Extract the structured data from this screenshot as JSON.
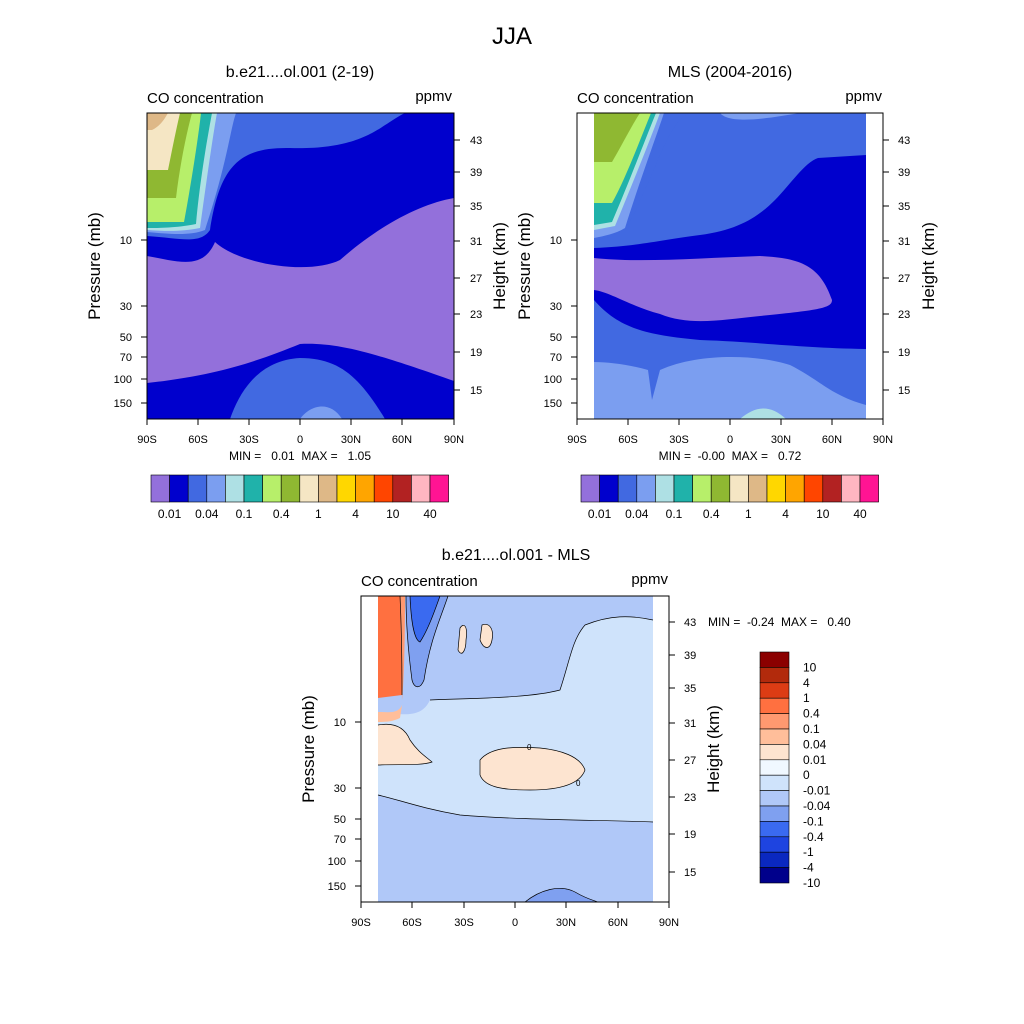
{
  "figure_title": "JJA",
  "chart_data": [
    {
      "type": "heatmap",
      "title": "b.e21....ol.001 (2-19)",
      "left_label": "CO concentration",
      "right_label": "ppmv",
      "ylabel": "Pressure (mb)",
      "y2label": "Height (km)",
      "x_ticks": [
        "90S",
        "60S",
        "30S",
        "0",
        "30N",
        "60N",
        "90N"
      ],
      "y_ticks": [
        "10",
        "30",
        "50",
        "70",
        "100",
        "150"
      ],
      "y2_ticks": [
        "43",
        "39",
        "35",
        "31",
        "27",
        "23",
        "19",
        "15"
      ],
      "stats": "MIN =   0.01  MAX =   1.05",
      "colorbar_labels": [
        "0.01",
        "0.04",
        "0.1",
        "0.4",
        "1",
        "4",
        "10",
        "40"
      ],
      "colorbar_colors": [
        "#9370db",
        "#0000cd",
        "#4169e1",
        "#7b9ef0",
        "#aee0e4",
        "#20b2aa",
        "#b7ef6a",
        "#8fb832",
        "#f5e6c4",
        "#deb887",
        "#ffd700",
        "#ffa500",
        "#ff4500",
        "#b22222",
        "#ffb6c1",
        "#ff1493"
      ]
    },
    {
      "type": "heatmap",
      "title": "MLS (2004-2016)",
      "left_label": "CO concentration",
      "right_label": "ppmv",
      "ylabel": "Pressure (mb)",
      "y2label": "Height (km)",
      "x_ticks": [
        "90S",
        "60S",
        "30S",
        "0",
        "30N",
        "60N",
        "90N"
      ],
      "y_ticks": [
        "10",
        "30",
        "50",
        "70",
        "100",
        "150"
      ],
      "y2_ticks": [
        "43",
        "39",
        "35",
        "31",
        "27",
        "23",
        "19",
        "15"
      ],
      "stats": "MIN =  -0.00  MAX =   0.72",
      "colorbar_labels": [
        "0.01",
        "0.04",
        "0.1",
        "0.4",
        "1",
        "4",
        "10",
        "40"
      ],
      "colorbar_colors": [
        "#9370db",
        "#0000cd",
        "#4169e1",
        "#7b9ef0",
        "#aee0e4",
        "#20b2aa",
        "#b7ef6a",
        "#8fb832",
        "#f5e6c4",
        "#deb887",
        "#ffd700",
        "#ffa500",
        "#ff4500",
        "#b22222",
        "#ffb6c1",
        "#ff1493"
      ]
    },
    {
      "type": "heatmap",
      "title": "b.e21....ol.001 - MLS",
      "left_label": "CO concentration",
      "right_label": "ppmv",
      "ylabel": "Pressure (mb)",
      "y2label": "Height (km)",
      "x_ticks": [
        "90S",
        "60S",
        "30S",
        "0",
        "30N",
        "60N",
        "90N"
      ],
      "y_ticks": [
        "10",
        "30",
        "50",
        "70",
        "100",
        "150"
      ],
      "y2_ticks": [
        "43",
        "39",
        "35",
        "31",
        "27",
        "23",
        "19",
        "15"
      ],
      "stats": "MIN =  -0.24  MAX =   0.40",
      "colorbar_labels": [
        "10",
        "4",
        "1",
        "0.4",
        "0.1",
        "0.04",
        "0.01",
        "0",
        "-0.01",
        "-0.04",
        "-0.1",
        "-0.4",
        "-1",
        "-4",
        "-10"
      ],
      "colorbar_colors": [
        "#8b0000",
        "#b22a0c",
        "#dc3c14",
        "#ff7040",
        "#ff9970",
        "#ffbe9a",
        "#fde4d0",
        "#f0f8ff",
        "#cfe3fb",
        "#b0c8f8",
        "#7fa0f0",
        "#3a6af0",
        "#1e44e0",
        "#0a28c0",
        "#00008b"
      ],
      "contour_labels": [
        "0",
        "0"
      ]
    }
  ]
}
